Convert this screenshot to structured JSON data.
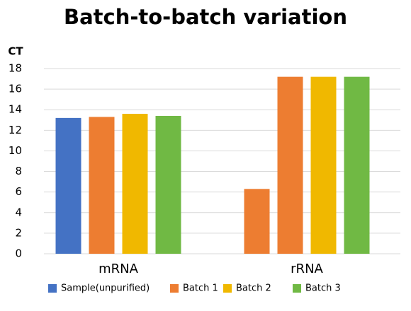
{
  "chart_data": {
    "type": "bar",
    "title": "Batch-to-batch variation",
    "y_label": "CT",
    "categories": [
      "mRNA",
      "rRNA"
    ],
    "series": [
      {
        "name": "Sample(unpurified)",
        "color": "#4472c4",
        "point_colors": [
          "#4472c4",
          "#ed7d31"
        ],
        "values": [
          13.2,
          6.3
        ]
      },
      {
        "name": "Batch 1",
        "color": "#ed7d31",
        "values": [
          13.3,
          17.2
        ]
      },
      {
        "name": "Batch 2",
        "color": "#f0b800",
        "values": [
          13.6,
          17.2
        ]
      },
      {
        "name": "Batch 3",
        "color": "#70b944",
        "values": [
          13.4,
          17.2
        ]
      }
    ],
    "ylim": [
      0,
      18
    ],
    "yticks": [
      0,
      2,
      4,
      6,
      8,
      10,
      12,
      14,
      16,
      18
    ],
    "grid": true,
    "legend": "bottom"
  }
}
